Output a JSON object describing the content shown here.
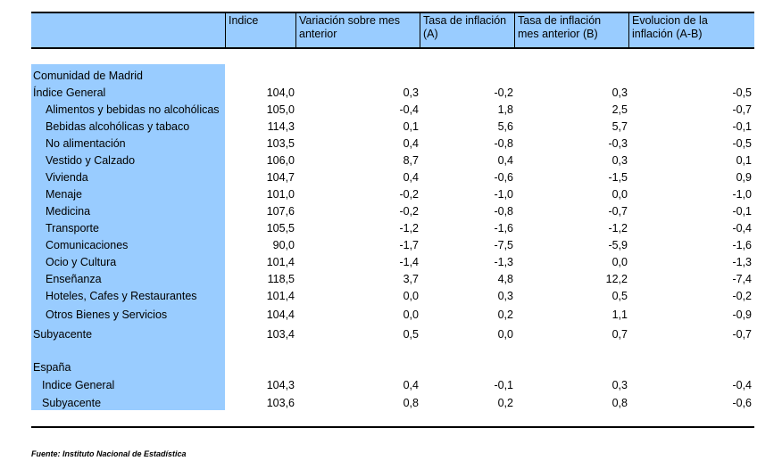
{
  "headers": {
    "indice": "Indice",
    "variacion": [
      "Variación sobre mes",
      "anterior"
    ],
    "tasa_a": [
      "Tasa de inflación",
      "(A)"
    ],
    "tasa_b": [
      "Tasa de inflación",
      "mes anterior (B)"
    ],
    "evolucion": [
      "Evolucion de la",
      "inflación (A-B)"
    ]
  },
  "section_madrid": "Comunidad de Madrid",
  "madrid_rows": [
    {
      "label": "Índice General",
      "indice": "104,0",
      "variacion": "0,3",
      "tasa_a": "-0,2",
      "tasa_b": "0,3",
      "evolucion": "-0,5"
    },
    {
      "label": "Alimentos y bebidas no alcohólicas",
      "indice": "105,0",
      "variacion": "-0,4",
      "tasa_a": "1,8",
      "tasa_b": "2,5",
      "evolucion": "-0,7"
    },
    {
      "label": "Bebidas alcohólicas y tabaco",
      "indice": "114,3",
      "variacion": "0,1",
      "tasa_a": "5,6",
      "tasa_b": "5,7",
      "evolucion": "-0,1"
    },
    {
      "label": "No alimentación",
      "indice": "103,5",
      "variacion": "0,4",
      "tasa_a": "-0,8",
      "tasa_b": "-0,3",
      "evolucion": "-0,5"
    },
    {
      "label": "Vestido y Calzado",
      "indice": "106,0",
      "variacion": "8,7",
      "tasa_a": "0,4",
      "tasa_b": "0,3",
      "evolucion": "0,1"
    },
    {
      "label": "Vivienda",
      "indice": "104,7",
      "variacion": "0,4",
      "tasa_a": "-0,6",
      "tasa_b": "-1,5",
      "evolucion": "0,9"
    },
    {
      "label": "Menaje",
      "indice": "101,0",
      "variacion": "-0,2",
      "tasa_a": "-1,0",
      "tasa_b": "0,0",
      "evolucion": "-1,0"
    },
    {
      "label": "Medicina",
      "indice": "107,6",
      "variacion": "-0,2",
      "tasa_a": "-0,8",
      "tasa_b": "-0,7",
      "evolucion": "-0,1"
    },
    {
      "label": "Transporte",
      "indice": "105,5",
      "variacion": "-1,2",
      "tasa_a": "-1,6",
      "tasa_b": "-1,2",
      "evolucion": "-0,4"
    },
    {
      "label": "Comunicaciones",
      "indice": "90,0",
      "variacion": "-1,7",
      "tasa_a": "-7,5",
      "tasa_b": "-5,9",
      "evolucion": "-1,6"
    },
    {
      "label": "Ocio y Cultura",
      "indice": "101,4",
      "variacion": "-1,4",
      "tasa_a": "-1,3",
      "tasa_b": "0,0",
      "evolucion": "-1,3"
    },
    {
      "label": "Enseñanza",
      "indice": "118,5",
      "variacion": "3,7",
      "tasa_a": "4,8",
      "tasa_b": "12,2",
      "evolucion": "-7,4"
    },
    {
      "label": "Hoteles, Cafes y Restaurantes",
      "indice": "101,4",
      "variacion": "0,0",
      "tasa_a": "0,3",
      "tasa_b": "0,5",
      "evolucion": "-0,2"
    },
    {
      "label": "Otros Bienes y Servicios",
      "indice": "104,4",
      "variacion": "0,0",
      "tasa_a": "0,2",
      "tasa_b": "1,1",
      "evolucion": "-0,9"
    },
    {
      "label": "Subyacente",
      "indice": "103,4",
      "variacion": "0,5",
      "tasa_a": "0,0",
      "tasa_b": "0,7",
      "evolucion": "-0,7"
    }
  ],
  "section_espana": "España",
  "espana_rows": [
    {
      "label": "Indice General",
      "indice": "104,3",
      "variacion": "0,4",
      "tasa_a": "-0,1",
      "tasa_b": "0,3",
      "evolucion": "-0,4"
    },
    {
      "label": "Subyacente",
      "indice": "103,6",
      "variacion": "0,8",
      "tasa_a": "0,2",
      "tasa_b": "0,8",
      "evolucion": "-0,6"
    }
  ],
  "source": "Fuente: Instituto Nacional de Estadística",
  "colors": {
    "header_fill": "#99ccff",
    "label_column_fill": "#99ccff"
  }
}
